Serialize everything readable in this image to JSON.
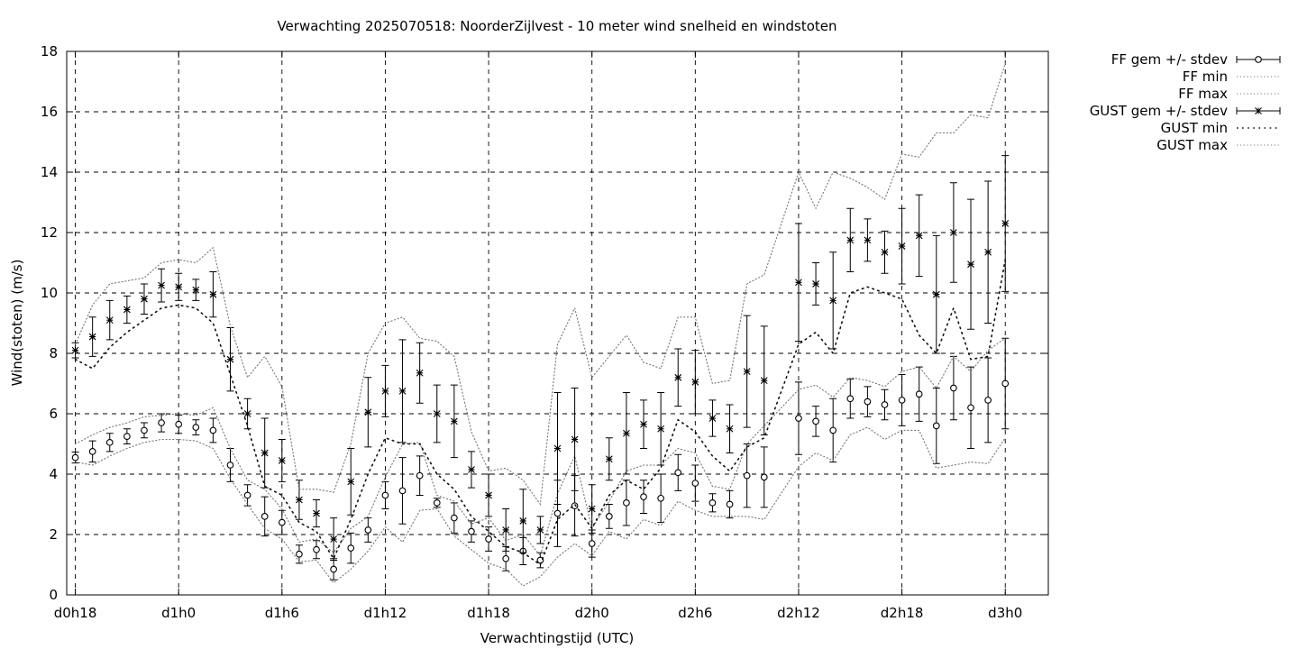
{
  "chart_data": {
    "type": "line",
    "title": "Verwachting 2025070518: NoorderZijlvest - 10 meter wind snelheid en windstoten",
    "xlabel": "Verwachtingstijd (UTC)",
    "ylabel": "Wind(stoten) (m/s)",
    "ylim": [
      0,
      18
    ],
    "yticks": [
      0,
      2,
      4,
      6,
      8,
      10,
      12,
      14,
      16,
      18
    ],
    "xlim": [
      -0.5,
      56.5
    ],
    "xticks": [
      {
        "x": 0,
        "label": "d0h18"
      },
      {
        "x": 6,
        "label": "d1h0"
      },
      {
        "x": 12,
        "label": "d1h6"
      },
      {
        "x": 18,
        "label": "d1h12"
      },
      {
        "x": 24,
        "label": "d1h18"
      },
      {
        "x": 30,
        "label": "d2h0"
      },
      {
        "x": 36,
        "label": "d2h6"
      },
      {
        "x": 42,
        "label": "d2h12"
      },
      {
        "x": 48,
        "label": "d2h18"
      },
      {
        "x": 54,
        "label": "d3h0"
      }
    ],
    "grid": true,
    "legend_position": "outside-right",
    "x": [
      0,
      1,
      2,
      3,
      4,
      5,
      6,
      7,
      8,
      9,
      10,
      11,
      12,
      13,
      14,
      15,
      16,
      17,
      18,
      19,
      20,
      21,
      22,
      23,
      24,
      25,
      26,
      27,
      28,
      29,
      30,
      31,
      32,
      33,
      34,
      35,
      36,
      37,
      38,
      39,
      40,
      42,
      43,
      44,
      45,
      46,
      47,
      48,
      49,
      50,
      51,
      52,
      53,
      54
    ],
    "series": [
      {
        "name": "FF gem +/- stdev",
        "style": "errorbar-circle",
        "values": [
          4.55,
          4.75,
          5.05,
          5.25,
          5.45,
          5.7,
          5.65,
          5.55,
          5.45,
          4.3,
          3.3,
          2.6,
          2.4,
          1.35,
          1.5,
          0.85,
          1.55,
          2.15,
          3.3,
          3.45,
          3.95,
          3.05,
          2.55,
          2.1,
          1.85,
          1.2,
          1.45,
          1.15,
          2.7,
          2.95,
          1.7,
          2.6,
          3.05,
          3.25,
          3.2,
          4.05,
          3.7,
          3.05,
          3.0,
          3.95,
          3.9,
          5.85,
          5.75,
          5.45,
          6.5,
          6.4,
          6.3,
          6.45,
          6.65,
          5.6,
          6.85,
          6.2,
          6.45,
          7.0
        ],
        "stdev": [
          0.18,
          0.35,
          0.3,
          0.25,
          0.25,
          0.3,
          0.3,
          0.25,
          0.4,
          0.55,
          0.35,
          0.65,
          0.4,
          0.3,
          0.3,
          0.35,
          0.5,
          0.4,
          0.45,
          1.1,
          0.65,
          0.15,
          0.5,
          0.35,
          0.4,
          0.4,
          0.45,
          0.25,
          1.1,
          1.0,
          0.45,
          0.4,
          0.75,
          0.55,
          0.8,
          0.6,
          0.6,
          0.3,
          0.45,
          1.05,
          1.0,
          1.2,
          0.5,
          1.05,
          0.65,
          0.5,
          0.5,
          0.85,
          0.9,
          1.25,
          1.05,
          1.35,
          1.4,
          1.5
        ]
      },
      {
        "name": "FF min",
        "style": "dotted",
        "values": [
          4.4,
          4.3,
          4.6,
          4.85,
          5.05,
          5.15,
          5.15,
          5.1,
          4.85,
          3.85,
          3.0,
          2.2,
          1.85,
          1.1,
          1.15,
          0.4,
          0.85,
          1.45,
          2.25,
          1.75,
          2.8,
          2.85,
          1.95,
          1.5,
          1.05,
          0.85,
          0.3,
          0.6,
          1.25,
          1.7,
          1.3,
          2.1,
          1.85,
          2.5,
          2.3,
          3.1,
          2.8,
          2.6,
          2.6,
          2.6,
          2.5,
          4.25,
          4.7,
          4.45,
          5.3,
          5.55,
          5.15,
          5.45,
          5.45,
          4.2,
          4.3,
          4.4,
          4.35,
          5.2
        ]
      },
      {
        "name": "FF max",
        "style": "dotted",
        "values": [
          5.0,
          5.3,
          5.55,
          5.7,
          5.9,
          5.95,
          6.0,
          5.95,
          6.2,
          4.85,
          3.8,
          3.5,
          2.85,
          1.75,
          1.85,
          1.4,
          2.2,
          2.6,
          3.9,
          5.0,
          5.05,
          3.3,
          3.1,
          2.35,
          2.55,
          1.8,
          2.0,
          1.3,
          3.35,
          4.6,
          2.2,
          3.1,
          4.1,
          4.3,
          4.3,
          4.85,
          4.7,
          3.6,
          3.5,
          5.0,
          5.6,
          6.8,
          6.95,
          6.55,
          7.2,
          7.1,
          6.9,
          7.4,
          7.55,
          6.85,
          7.9,
          7.4,
          8.1,
          8.5
        ]
      },
      {
        "name": "GUST gem +/- stdev",
        "style": "errorbar-star",
        "values": [
          8.1,
          8.55,
          9.1,
          9.45,
          9.8,
          10.25,
          10.2,
          10.1,
          9.95,
          7.8,
          6.0,
          4.7,
          4.45,
          3.15,
          2.7,
          1.85,
          3.75,
          6.05,
          6.75,
          6.75,
          7.35,
          6.0,
          5.75,
          4.15,
          3.3,
          2.15,
          2.45,
          2.15,
          4.85,
          5.15,
          2.85,
          4.5,
          5.35,
          5.65,
          5.5,
          7.2,
          7.05,
          5.85,
          5.5,
          7.4,
          7.1,
          10.35,
          10.3,
          9.75,
          11.75,
          11.75,
          11.35,
          11.55,
          11.9,
          9.95,
          12.0,
          10.95,
          11.35,
          12.3
        ],
        "stdev": [
          0.25,
          0.65,
          0.65,
          0.45,
          0.5,
          0.55,
          0.45,
          0.35,
          0.75,
          1.05,
          0.5,
          1.15,
          0.7,
          0.65,
          0.45,
          0.7,
          1.1,
          1.15,
          0.85,
          1.7,
          1.0,
          0.95,
          1.2,
          0.6,
          0.7,
          0.7,
          1.05,
          0.45,
          1.85,
          1.7,
          0.8,
          0.7,
          1.35,
          0.8,
          1.2,
          0.95,
          1.05,
          0.6,
          0.8,
          1.85,
          1.8,
          1.95,
          0.7,
          1.6,
          1.05,
          0.7,
          0.7,
          1.25,
          1.35,
          1.95,
          1.65,
          2.15,
          2.35,
          2.25
        ]
      },
      {
        "name": "GUST min",
        "style": "dotted-sparse",
        "values": [
          7.8,
          7.5,
          8.2,
          8.7,
          9.1,
          9.5,
          9.6,
          9.5,
          9.0,
          7.3,
          5.6,
          3.6,
          3.3,
          2.4,
          2.1,
          1.2,
          2.5,
          4.0,
          5.2,
          5.0,
          5.0,
          4.0,
          3.5,
          2.6,
          2.1,
          1.6,
          1.4,
          1.0,
          2.5,
          3.0,
          2.2,
          3.3,
          3.8,
          3.5,
          4.2,
          5.8,
          5.4,
          4.6,
          4.1,
          4.9,
          5.2,
          8.3,
          8.7,
          8.0,
          10.0,
          10.2,
          10.0,
          9.8,
          8.6,
          8.0,
          9.5,
          7.8,
          7.9,
          11.1
        ]
      },
      {
        "name": "GUST max",
        "style": "dotted",
        "values": [
          8.3,
          9.6,
          10.3,
          10.4,
          10.5,
          11.0,
          11.1,
          11.0,
          11.5,
          8.9,
          7.2,
          7.9,
          6.9,
          3.5,
          3.5,
          3.4,
          5.0,
          8.0,
          9.0,
          9.2,
          8.5,
          8.4,
          7.9,
          5.4,
          4.1,
          4.2,
          3.8,
          3.0,
          8.3,
          9.5,
          7.2,
          7.9,
          8.6,
          7.7,
          7.5,
          9.2,
          9.2,
          7.0,
          7.1,
          10.3,
          10.6,
          14.0,
          12.8,
          14.0,
          13.8,
          13.5,
          13.1,
          14.6,
          14.5,
          15.3,
          15.3,
          15.9,
          15.8,
          17.6
        ]
      }
    ]
  }
}
